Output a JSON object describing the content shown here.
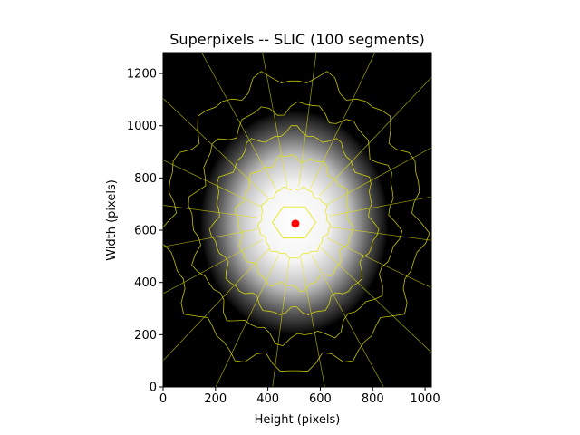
{
  "chart_data": {
    "type": "heatmap",
    "title": "Superpixels -- SLIC (100 segments)",
    "xlabel": "Height (pixels)",
    "ylabel": "Width (pixels)",
    "xlim": [
      0,
      1024
    ],
    "ylim": [
      0,
      1280
    ],
    "xticks": [
      0,
      200,
      400,
      600,
      800,
      1000
    ],
    "yticks": [
      0,
      200,
      400,
      600,
      800,
      1000,
      1200
    ],
    "xtick_labels": [
      "0",
      "200",
      "400",
      "600",
      "800",
      "1000"
    ],
    "ytick_labels": [
      "0",
      "200",
      "400",
      "600",
      "800",
      "1000",
      "1200"
    ],
    "image": {
      "description_colormap": "grayscale",
      "blob_center": [
        500,
        630
      ],
      "blob_radius": [
        360,
        430
      ]
    },
    "segments": 100,
    "boundary_color": "#e6e600",
    "marker": {
      "x": 505,
      "y": 625,
      "color": "#ff0000"
    },
    "grid": false
  }
}
